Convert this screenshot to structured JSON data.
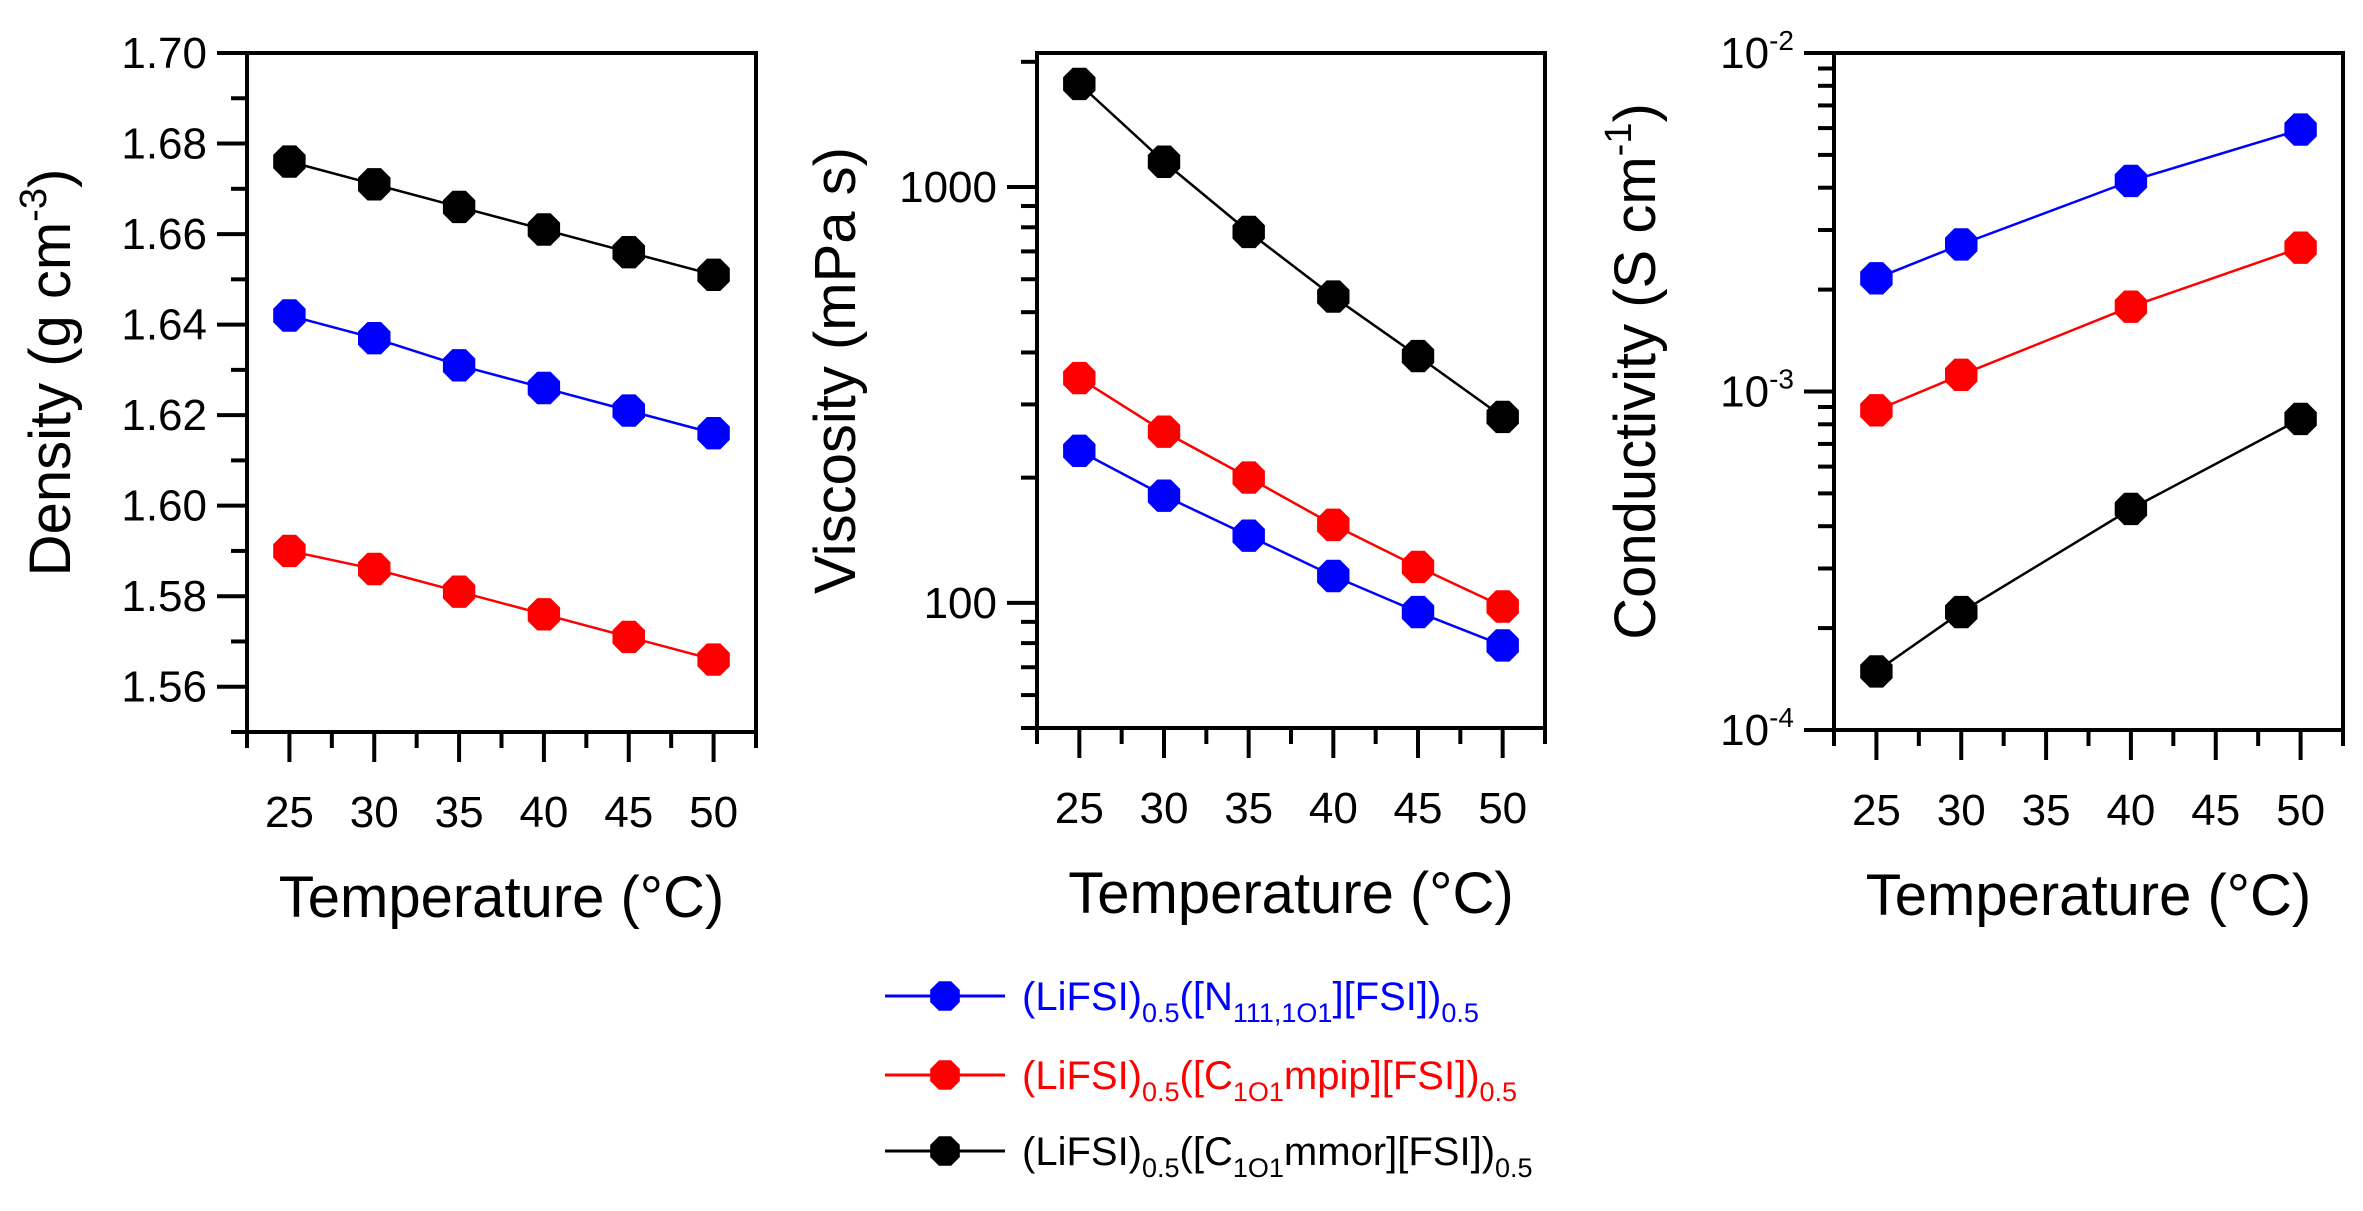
{
  "chart_data": [
    {
      "type": "line",
      "panel": "density",
      "xlabel": "Temperature (°C)",
      "ylabel": "Density (g cm",
      "ylabel_sup": "-3",
      "ylabel_tail": ")",
      "yscale": "linear",
      "xlim": [
        22.5,
        52.5
      ],
      "ylim": [
        1.55,
        1.7
      ],
      "xticks": [
        25,
        30,
        35,
        40,
        45,
        50
      ],
      "xtick_labels": [
        "25",
        "30",
        "35",
        "40",
        "45",
        "50"
      ],
      "yticks": [
        1.56,
        1.58,
        1.6,
        1.62,
        1.64,
        1.66,
        1.68,
        1.7
      ],
      "ytick_labels": [
        "1.56",
        "1.58",
        "1.60",
        "1.62",
        "1.64",
        "1.66",
        "1.68",
        "1.70"
      ],
      "grid": false,
      "series": [
        {
          "key": "n111",
          "x": [
            25,
            30,
            35,
            40,
            45,
            50
          ],
          "values": [
            1.642,
            1.637,
            1.631,
            1.626,
            1.621,
            1.616
          ]
        },
        {
          "key": "mpip",
          "x": [
            25,
            30,
            35,
            40,
            45,
            50
          ],
          "values": [
            1.59,
            1.586,
            1.581,
            1.576,
            1.571,
            1.566
          ]
        },
        {
          "key": "mmor",
          "x": [
            25,
            30,
            35,
            40,
            45,
            50
          ],
          "values": [
            1.676,
            1.671,
            1.666,
            1.661,
            1.656,
            1.651
          ]
        }
      ]
    },
    {
      "type": "line",
      "panel": "viscosity",
      "xlabel": "Temperature (°C)",
      "ylabel": "Viscosity (mPa s)",
      "ylabel_sup": "",
      "ylabel_tail": "",
      "yscale": "log",
      "xlim": [
        22.5,
        52.5
      ],
      "ylim": [
        50,
        2100
      ],
      "xticks": [
        25,
        30,
        35,
        40,
        45,
        50
      ],
      "xtick_labels": [
        "25",
        "30",
        "35",
        "40",
        "45",
        "50"
      ],
      "yticks": [
        100,
        1000
      ],
      "ytick_labels": [
        "100",
        "1000"
      ],
      "grid": false,
      "series": [
        {
          "key": "n111",
          "x": [
            25,
            30,
            35,
            40,
            45,
            50
          ],
          "values": [
            232,
            181,
            145,
            116,
            95,
            79
          ]
        },
        {
          "key": "mpip",
          "x": [
            25,
            30,
            35,
            40,
            45,
            50
          ],
          "values": [
            347,
            258,
            200,
            154,
            122,
            98
          ]
        },
        {
          "key": "mmor",
          "x": [
            25,
            30,
            35,
            40,
            45,
            50
          ],
          "values": [
            1770,
            1150,
            780,
            545,
            392,
            280
          ]
        }
      ]
    },
    {
      "type": "line",
      "panel": "conductivity",
      "xlabel": "Temperature (°C)",
      "ylabel": "Conductivity (S cm",
      "ylabel_sup": "-1",
      "ylabel_tail": ")",
      "yscale": "log",
      "xlim": [
        22.5,
        52.5
      ],
      "ylim": [
        0.0001,
        0.01
      ],
      "xticks": [
        25,
        30,
        35,
        40,
        45,
        50
      ],
      "xtick_labels": [
        "25",
        "30",
        "35",
        "40",
        "45",
        "50"
      ],
      "yticks": [
        0.0001,
        0.001,
        0.01
      ],
      "ytick_labels": [
        [
          "10",
          "-4"
        ],
        [
          "10",
          "-3"
        ],
        [
          "10",
          "-2"
        ]
      ],
      "grid": false,
      "series": [
        {
          "key": "n111",
          "x": [
            25,
            30,
            40,
            50
          ],
          "values": [
            0.00216,
            0.00272,
            0.00419,
            0.00594
          ]
        },
        {
          "key": "mpip",
          "x": [
            25,
            30,
            40,
            50
          ],
          "values": [
            0.00088,
            0.00112,
            0.00178,
            0.00266
          ]
        },
        {
          "key": "mmor",
          "x": [
            25,
            30,
            40,
            50
          ],
          "values": [
            0.000149,
            0.000223,
            0.00045,
            0.00083
          ]
        }
      ]
    }
  ],
  "legend": {
    "placement": "bottom-center",
    "entries": [
      {
        "key": "n111",
        "color": "#0000ff",
        "parts": [
          [
            "(LiFSI)",
            ""
          ],
          [
            "0.5",
            "sub"
          ],
          [
            "([N",
            ""
          ],
          [
            "111,1O1",
            "sub"
          ],
          [
            "][FSI])",
            ""
          ],
          [
            "0.5",
            "sub"
          ]
        ]
      },
      {
        "key": "mpip",
        "color": "#ff0000",
        "parts": [
          [
            "(LiFSI)",
            ""
          ],
          [
            "0.5",
            "sub"
          ],
          [
            "([C",
            ""
          ],
          [
            "1O1",
            "sub"
          ],
          [
            "mpip][FSI])",
            ""
          ],
          [
            "0.5",
            "sub"
          ]
        ]
      },
      {
        "key": "mmor",
        "color": "#000000",
        "parts": [
          [
            "(LiFSI)",
            ""
          ],
          [
            "0.5",
            "sub"
          ],
          [
            "([C",
            ""
          ],
          [
            "1O1",
            "sub"
          ],
          [
            "mmor][FSI])",
            ""
          ],
          [
            "0.5",
            "sub"
          ]
        ]
      }
    ]
  },
  "colors": {
    "n111": "#0000ff",
    "mpip": "#ff0000",
    "mmor": "#000000"
  }
}
